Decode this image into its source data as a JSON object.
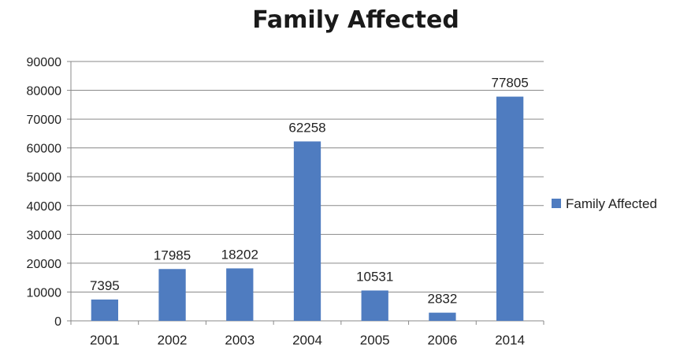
{
  "chart_data": {
    "type": "bar",
    "title": "Family Affected",
    "categories": [
      "2001",
      "2002",
      "2003",
      "2004",
      "2005",
      "2006",
      "2014"
    ],
    "series": [
      {
        "name": "Family Affected",
        "values": [
          7395,
          17985,
          18202,
          62258,
          10531,
          2832,
          77805
        ]
      }
    ],
    "ylim": [
      0,
      90000
    ],
    "yticks": [
      "0",
      "10000",
      "20000",
      "30000",
      "40000",
      "50000",
      "60000",
      "70000",
      "80000",
      "90000"
    ],
    "grid": true,
    "legend_position": "right",
    "bar_color": "#4f7cc0"
  }
}
